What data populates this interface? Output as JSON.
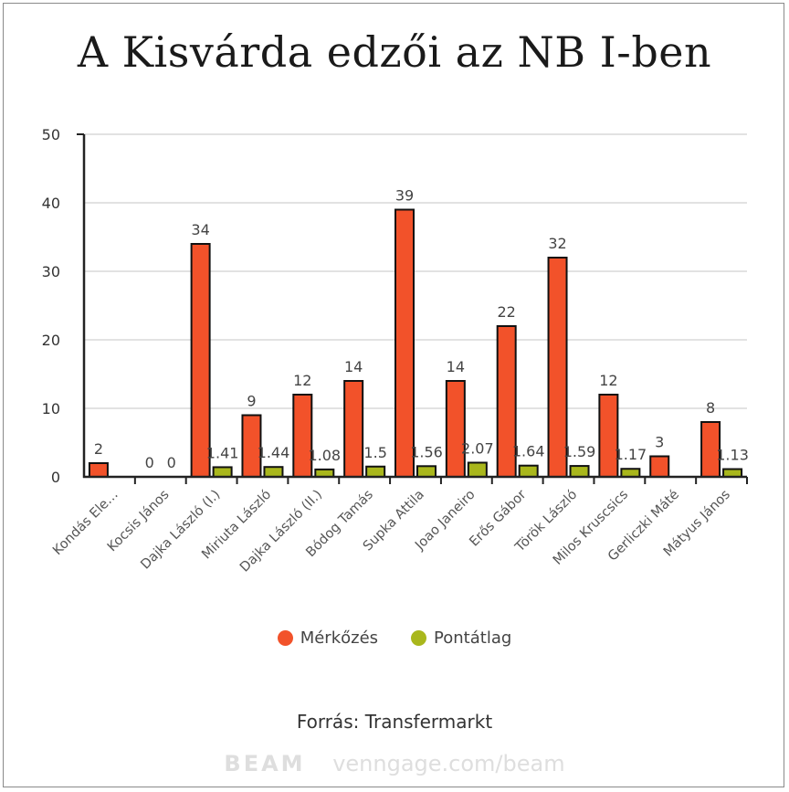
{
  "title": "A Kisvárda edzői az NB I-ben",
  "source": "Forrás: Transfermarkt",
  "watermark": {
    "brand": "BEAM",
    "url": "venngage.com/beam"
  },
  "colors": {
    "matches": "#f2522a",
    "average": "#a9b71c",
    "axis": "#222222",
    "grid": "#d8d8d8"
  },
  "chart_data": {
    "type": "bar",
    "categories": [
      "Kondás Ele…",
      "Kocsis János",
      "Dajka László (I.)",
      "Miriuta László",
      "Dajka László (II.)",
      "Bódog Tamás",
      "Supka Attila",
      "Joao Janeiro",
      "Erős Gábor",
      "Török László",
      "Milos Kruscsics",
      "Gerliczki Máté",
      "Mátyus János"
    ],
    "series": [
      {
        "name": "Mérkőzés",
        "values": [
          2,
          0,
          34,
          9,
          12,
          14,
          39,
          14,
          22,
          32,
          12,
          3,
          8
        ],
        "labels": [
          "2",
          "0",
          "34",
          "9",
          "12",
          "14",
          "39",
          "14",
          "22",
          "32",
          "12",
          "3",
          "8"
        ]
      },
      {
        "name": "Pontátlag",
        "values": [
          null,
          0,
          1.41,
          1.44,
          1.08,
          1.5,
          1.56,
          2.07,
          1.64,
          1.59,
          1.17,
          0,
          1.13
        ],
        "labels": [
          "",
          "0",
          "1.41",
          "1.44",
          "1.08",
          "1.5",
          "1.56",
          "2.07",
          "1.64",
          "1.59",
          "1.17",
          "",
          "1.13"
        ]
      }
    ],
    "ylim": [
      0,
      50
    ],
    "yticks": [
      0,
      10,
      20,
      30,
      40,
      50
    ],
    "grid": true,
    "legend": "bottom-center"
  }
}
